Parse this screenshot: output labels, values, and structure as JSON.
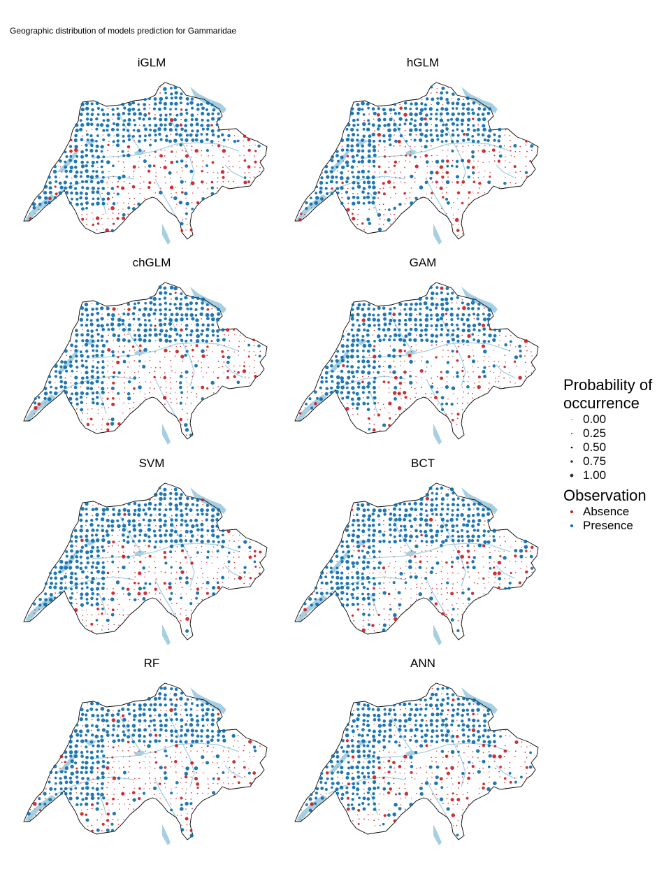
{
  "figure_title": "Geographic distribution of models prediction for Gammaridae",
  "panels": [
    "iGLM",
    "hGLM",
    "chGLM",
    "GAM",
    "SVM",
    "BCT",
    "RF",
    "ANN"
  ],
  "legend": {
    "size_title_line1": "Probability of",
    "size_title_line2": "occurrence",
    "size_labels": [
      "0.00",
      "0.25",
      "0.50",
      "0.75",
      "1.00"
    ],
    "size_values": [
      0.0,
      0.25,
      0.5,
      0.75,
      1.0
    ],
    "color_title": "Observation",
    "color_labels": [
      "Absence",
      "Presence"
    ]
  },
  "colors": {
    "absence": "#cb181d",
    "presence": "#0868ac",
    "water": "#a6cfe2",
    "border": "#000000"
  }
}
